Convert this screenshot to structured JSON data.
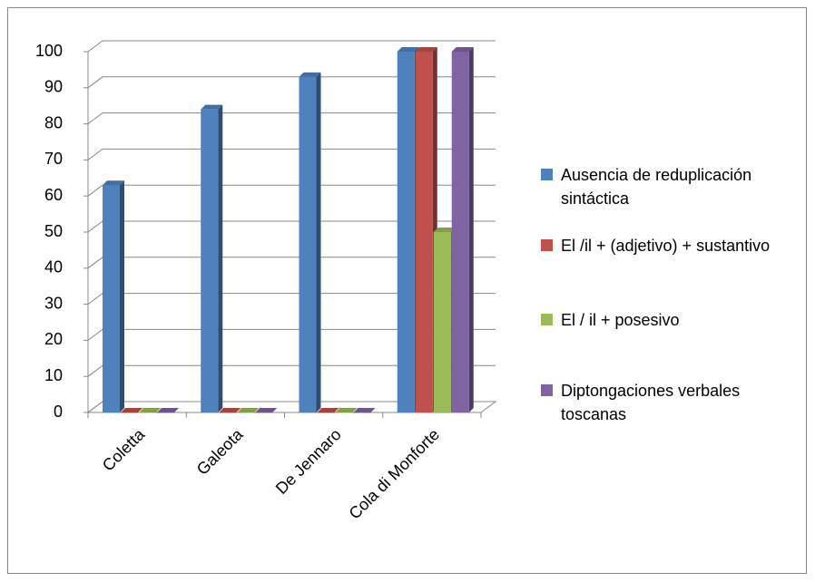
{
  "chart_data": {
    "type": "bar3d",
    "categories": [
      "Coletta",
      "Galeota",
      "De Jennaro",
      "Cola di Monforte"
    ],
    "series": [
      {
        "name": "Ausencia de reduplicación sintáctica",
        "color": "#4f81bd",
        "values": [
          63,
          84,
          93,
          100
        ]
      },
      {
        "name": "El /il + (adjetivo) + sustantivo",
        "color": "#c0504d",
        "values": [
          0,
          0,
          0,
          100
        ]
      },
      {
        "name": "El / il + posesivo",
        "color": "#9bbb59",
        "values": [
          0,
          0,
          0,
          50
        ]
      },
      {
        "name": "Diptongaciones verbales toscanas",
        "color": "#8064a2",
        "values": [
          0,
          0,
          0,
          100
        ]
      }
    ],
    "ylim": [
      0,
      100
    ],
    "yticks": [
      0,
      10,
      20,
      30,
      40,
      50,
      60,
      70,
      80,
      90,
      100
    ],
    "grid": true,
    "legend": "right"
  }
}
